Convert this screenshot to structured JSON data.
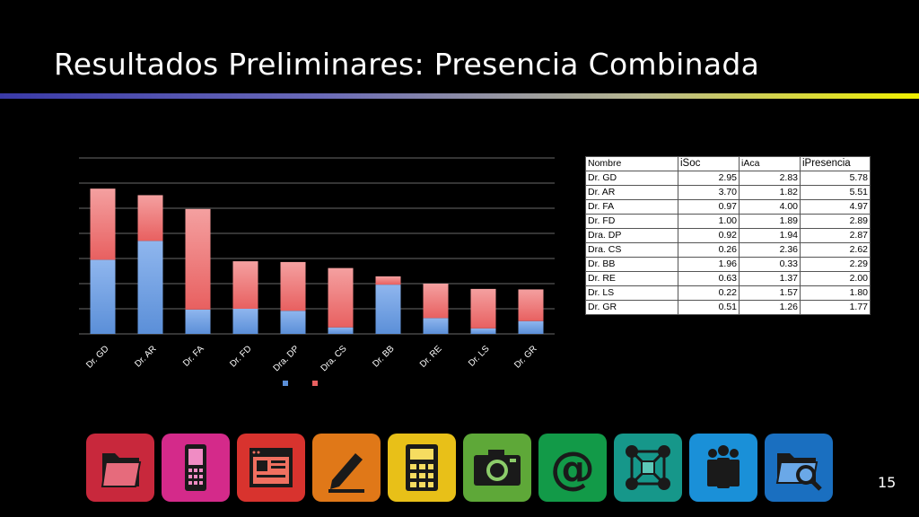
{
  "title": "Resultados Preliminares: Presencia Combinada",
  "page_number": "15",
  "chart_data": {
    "type": "bar",
    "stacked": true,
    "categories": [
      "Dr. GD",
      "Dr. AR",
      "Dr. FA",
      "Dr. FD",
      "Dra. DP",
      "Dra. CS",
      "Dr. BB",
      "Dr. RE",
      "Dr. LS",
      "Dr. GR"
    ],
    "series": [
      {
        "values": [
          2.95,
          3.7,
          0.97,
          1.0,
          0.92,
          0.26,
          1.96,
          0.63,
          0.22,
          0.51
        ],
        "color": "#5b8fd8"
      },
      {
        "values": [
          2.83,
          1.82,
          4.0,
          1.89,
          1.94,
          2.36,
          0.33,
          1.37,
          1.57,
          1.26
        ],
        "color": "#e86060"
      }
    ],
    "ylim": [
      0,
      7
    ],
    "grid": true,
    "legend": "bottom"
  },
  "table": {
    "headers": [
      "Nombre",
      "iSoc",
      "iAca",
      "iPresencia"
    ],
    "rows": [
      [
        "Dr. GD",
        "2.95",
        "2.83",
        "5.78"
      ],
      [
        "Dr. AR",
        "3.70",
        "1.82",
        "5.51"
      ],
      [
        "Dr. FA",
        "0.97",
        "4.00",
        "4.97"
      ],
      [
        "Dr. FD",
        "1.00",
        "1.89",
        "2.89"
      ],
      [
        "Dra. DP",
        "0.92",
        "1.94",
        "2.87"
      ],
      [
        "Dra. CS",
        "0.26",
        "2.36",
        "2.62"
      ],
      [
        "Dr. BB",
        "1.96",
        "0.33",
        "2.29"
      ],
      [
        "Dr. RE",
        "0.63",
        "1.37",
        "2.00"
      ],
      [
        "Dr. LS",
        "0.22",
        "1.57",
        "1.80"
      ],
      [
        "Dr. GR",
        "0.51",
        "1.26",
        "1.77"
      ]
    ]
  },
  "dock": [
    {
      "icon": "folder-icon",
      "color": "#c8283c"
    },
    {
      "icon": "mobile-phone-icon",
      "color": "#d42a8a"
    },
    {
      "icon": "browser-window-icon",
      "color": "#d8332e"
    },
    {
      "icon": "pencil-edit-icon",
      "color": "#e07818"
    },
    {
      "icon": "calculator-icon",
      "color": "#e8c018"
    },
    {
      "icon": "camera-icon",
      "color": "#5ea838"
    },
    {
      "icon": "at-sign-icon",
      "color": "#129a48"
    },
    {
      "icon": "network-diagram-icon",
      "color": "#16978a"
    },
    {
      "icon": "people-group-icon",
      "color": "#1a90d8"
    },
    {
      "icon": "folder-search-icon",
      "color": "#1a6fc0"
    }
  ]
}
